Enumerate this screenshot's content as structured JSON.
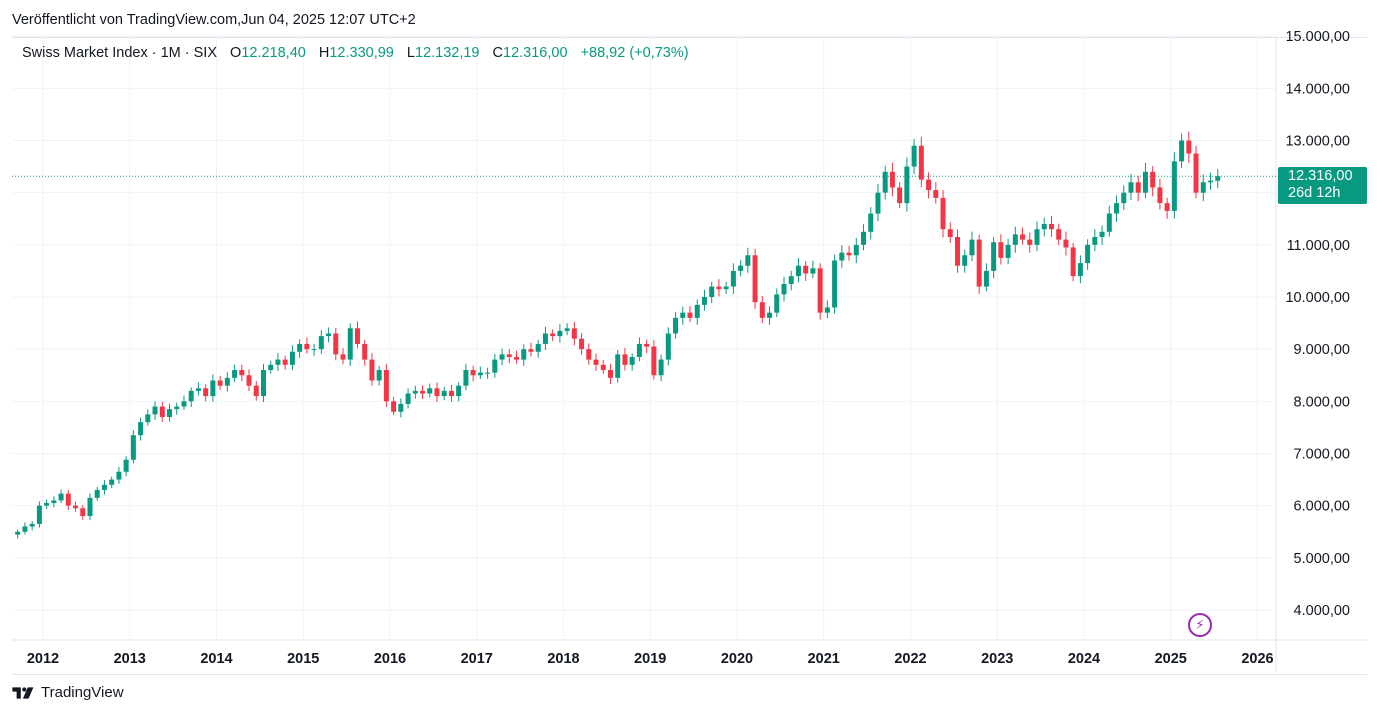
{
  "header": {
    "published": "Veröffentlicht von TradingView.com,Jun 04, 2025 12:07 UTC+2"
  },
  "legend": {
    "symbol": "Swiss Market Index · 1M · SIX",
    "o_label": "O",
    "o_value": "12.218,40",
    "h_label": "H",
    "h_value": "12.330,99",
    "l_label": "L",
    "l_value": "12.132,19",
    "c_label": "C",
    "c_value": "12.316,00",
    "change": "+88,92 (+0,73%)"
  },
  "price_tag": {
    "price": "12.316,00",
    "countdown": "26d 12h"
  },
  "footer": {
    "brand": "TradingView"
  },
  "colors": {
    "up": "#089981",
    "down": "#f23645",
    "grid": "#f0f3fa",
    "text": "#131722",
    "accent": "#9c27b0"
  },
  "icons": {
    "replay": "lightning-icon",
    "logo": "tradingview-logo-icon"
  },
  "chart_data": {
    "type": "candlestick",
    "symbol": "Swiss Market Index",
    "interval": "1M",
    "exchange": "SIX",
    "y_axis_labels": [
      "15.000,00",
      "14.000,00",
      "13.000,00",
      "12.000,00",
      "11.000,00",
      "10.000,00",
      "9.000,00",
      "8.000,00",
      "7.000,00",
      "6.000,00",
      "5.000,00",
      "4.000,00"
    ],
    "y_axis_values": [
      15000,
      14000,
      13000,
      12000,
      11000,
      10000,
      9000,
      8000,
      7000,
      6000,
      5000,
      4000
    ],
    "x_axis_labels": [
      "2012",
      "2013",
      "2014",
      "2015",
      "2016",
      "2017",
      "2018",
      "2019",
      "2020",
      "2021",
      "2022",
      "2023",
      "2024",
      "2025",
      "2026"
    ],
    "x_axis_years": [
      2012,
      2013,
      2014,
      2015,
      2016,
      2017,
      2018,
      2019,
      2020,
      2021,
      2022,
      2023,
      2024,
      2025,
      2026
    ],
    "ylim": [
      3500,
      15000
    ],
    "xlim": [
      2011.72,
      2026.2
    ],
    "last_close": 12316,
    "grid": true,
    "start": "2011-09",
    "closes": [
      5500,
      5600,
      5650,
      6000,
      6050,
      6100,
      6230,
      6000,
      5950,
      5800,
      6150,
      6300,
      6400,
      6500,
      6650,
      6880,
      7350,
      7600,
      7750,
      7900,
      7700,
      7850,
      7900,
      8000,
      8200,
      8250,
      8100,
      8400,
      8300,
      8450,
      8600,
      8500,
      8300,
      8100,
      8600,
      8700,
      8800,
      8700,
      8950,
      9100,
      9000,
      9000,
      9250,
      9300,
      8900,
      8800,
      9400,
      9100,
      8800,
      8400,
      8600,
      8000,
      7800,
      7950,
      8150,
      8200,
      8150,
      8250,
      8100,
      8200,
      8100,
      8300,
      8600,
      8500,
      8550,
      8550,
      8800,
      8900,
      8850,
      8800,
      9000,
      8950,
      9100,
      9300,
      9250,
      9350,
      9400,
      9200,
      9000,
      8800,
      8700,
      8600,
      8450,
      8900,
      8700,
      8850,
      9100,
      9050,
      8500,
      8800,
      9300,
      9600,
      9700,
      9600,
      9850,
      10000,
      10200,
      10150,
      10200,
      10500,
      10600,
      10800,
      9900,
      9600,
      9700,
      10050,
      10250,
      10400,
      10600,
      10450,
      10550,
      9700,
      9800,
      10700,
      10850,
      10800,
      11000,
      11250,
      11600,
      12000,
      12400,
      12100,
      11800,
      12500,
      12900,
      12250,
      12050,
      11900,
      11300,
      11150,
      10600,
      10800,
      11100,
      10200,
      10500,
      11050,
      10750,
      11000,
      11200,
      11100,
      11000,
      11300,
      11400,
      11300,
      11100,
      10950,
      10400,
      10650,
      11000,
      11150,
      11250,
      11600,
      11800,
      12000,
      12200,
      12000,
      12400,
      12100,
      11800,
      11650,
      12600,
      13000,
      12750,
      12000,
      12200,
      12230,
      12316
    ]
  }
}
